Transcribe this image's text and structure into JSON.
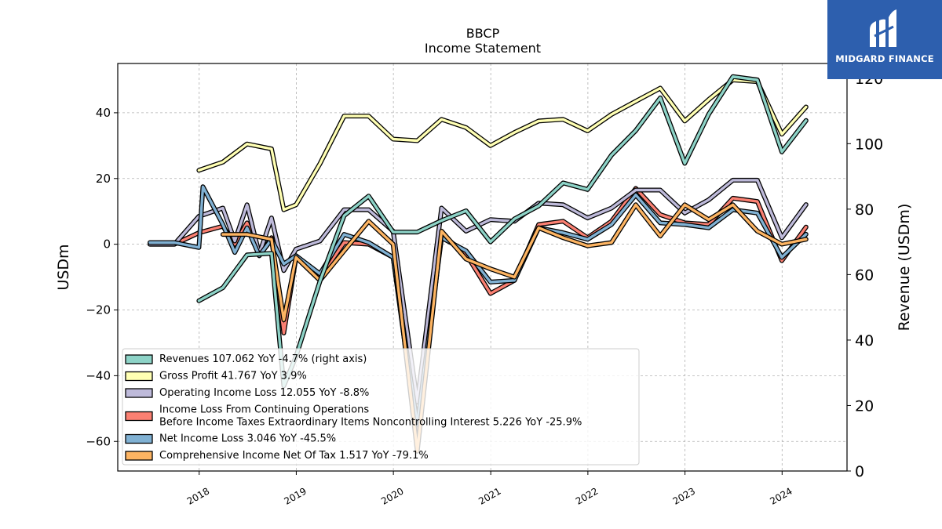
{
  "brand": {
    "name": "MIDGARD FINANCE",
    "bg_color": "#2d5fae"
  },
  "chart_data": {
    "type": "line",
    "title": "BBCP",
    "subtitle": "Income Statement",
    "ylabel_left": "USDm",
    "ylabel_right": "Revenue (USDm)",
    "ylim_left": [
      -69,
      55
    ],
    "ylim_right": [
      0,
      124.5
    ],
    "left_ticks": [
      40,
      20,
      0,
      -20,
      -40,
      -60
    ],
    "right_ticks": [
      120,
      100,
      80,
      60,
      40,
      20,
      0
    ],
    "x_ticks": [
      "2018",
      "2019",
      "2020",
      "2021",
      "2022",
      "2023",
      "2024"
    ],
    "x_tick_dates": [
      "2018-01-01",
      "2019-01-01",
      "2020-01-01",
      "2021-01-01",
      "2022-01-01",
      "2023-01-01",
      "2024-01-01"
    ],
    "grid": true,
    "legend_position": "lower-left",
    "series": [
      {
        "name": "Revenues",
        "legend": "Revenues  107.062 YoY -4.7% (right axis)",
        "color": "#8dd3c7",
        "axis": "right",
        "points": [
          [
            "2017-12-31",
            52
          ],
          [
            "2018-03-31",
            56
          ],
          [
            "2018-06-30",
            66
          ],
          [
            "2018-09-30",
            66.5
          ],
          [
            "2018-11-15",
            26
          ],
          [
            "2018-12-31",
            35
          ],
          [
            "2019-03-31",
            58
          ],
          [
            "2019-06-30",
            78
          ],
          [
            "2019-09-30",
            84
          ],
          [
            "2019-12-31",
            73
          ],
          [
            "2020-03-31",
            73
          ],
          [
            "2020-06-30",
            76.5
          ],
          [
            "2020-09-30",
            79.5
          ],
          [
            "2020-12-31",
            70
          ],
          [
            "2021-03-31",
            77
          ],
          [
            "2021-06-30",
            81
          ],
          [
            "2021-09-30",
            88
          ],
          [
            "2021-12-31",
            86
          ],
          [
            "2022-03-31",
            96.5
          ],
          [
            "2022-06-30",
            104
          ],
          [
            "2022-09-30",
            114
          ],
          [
            "2022-12-31",
            94
          ],
          [
            "2023-03-31",
            109
          ],
          [
            "2023-06-30",
            120.5
          ],
          [
            "2023-09-30",
            119.5
          ],
          [
            "2023-12-31",
            97.5
          ],
          [
            "2024-03-31",
            107.062
          ]
        ]
      },
      {
        "name": "Gross Profit",
        "legend": "Gross Profit  41.767 YoY 3.9%",
        "color": "#ffffb3",
        "axis": "left",
        "points": [
          [
            "2017-12-31",
            22.5
          ],
          [
            "2018-03-31",
            25
          ],
          [
            "2018-06-30",
            30.5
          ],
          [
            "2018-09-30",
            29
          ],
          [
            "2018-11-15",
            10.5
          ],
          [
            "2018-12-31",
            12
          ],
          [
            "2019-03-31",
            24.5
          ],
          [
            "2019-06-30",
            39
          ],
          [
            "2019-09-30",
            39
          ],
          [
            "2019-12-31",
            32
          ],
          [
            "2020-03-31",
            31.5
          ],
          [
            "2020-06-30",
            38
          ],
          [
            "2020-09-30",
            35.5
          ],
          [
            "2020-12-31",
            30
          ],
          [
            "2021-03-31",
            34
          ],
          [
            "2021-06-30",
            37.5
          ],
          [
            "2021-09-30",
            38
          ],
          [
            "2021-12-31",
            34.5
          ],
          [
            "2022-03-31",
            39.5
          ],
          [
            "2022-06-30",
            43.5
          ],
          [
            "2022-09-30",
            47.5
          ],
          [
            "2022-12-31",
            37.5
          ],
          [
            "2023-03-31",
            44
          ],
          [
            "2023-06-30",
            50
          ],
          [
            "2023-09-30",
            49.5
          ],
          [
            "2023-12-31",
            33.5
          ],
          [
            "2024-03-31",
            41.767
          ]
        ]
      },
      {
        "name": "Operating Income Loss",
        "legend": "Operating Income Loss  12.055 YoY -8.8%",
        "color": "#bebada",
        "axis": "left",
        "points": [
          [
            "2017-06-30",
            0
          ],
          [
            "2017-09-30",
            0
          ],
          [
            "2017-12-31",
            8.5
          ],
          [
            "2018-03-31",
            11
          ],
          [
            "2018-05-15",
            1
          ],
          [
            "2018-06-30",
            12
          ],
          [
            "2018-08-15",
            -3
          ],
          [
            "2018-09-30",
            8
          ],
          [
            "2018-11-15",
            -8
          ],
          [
            "2018-12-31",
            -1.5
          ],
          [
            "2019-03-31",
            1
          ],
          [
            "2019-06-30",
            10.5
          ],
          [
            "2019-09-30",
            10.5
          ],
          [
            "2019-12-31",
            4
          ],
          [
            "2020-03-31",
            -48
          ],
          [
            "2020-06-30",
            11
          ],
          [
            "2020-09-30",
            4
          ],
          [
            "2020-12-31",
            7.5
          ],
          [
            "2021-03-31",
            7
          ],
          [
            "2021-06-30",
            12.5
          ],
          [
            "2021-09-30",
            12
          ],
          [
            "2021-12-31",
            8
          ],
          [
            "2022-03-31",
            11
          ],
          [
            "2022-06-30",
            16.5
          ],
          [
            "2022-09-30",
            16.5
          ],
          [
            "2022-12-31",
            9.5
          ],
          [
            "2023-03-31",
            13.5
          ],
          [
            "2023-06-30",
            19.5
          ],
          [
            "2023-09-30",
            19.5
          ],
          [
            "2023-12-31",
            2
          ],
          [
            "2024-03-31",
            12.055
          ]
        ]
      },
      {
        "name": "Income Loss From Continuing Operations Before Income Taxes Extraordinary Items Noncontrolling Interest",
        "legend_lines": [
          "Income Loss From Continuing Operations",
          "Before Income Taxes Extraordinary Items Noncontrolling Interest  5.226 YoY -25.9%"
        ],
        "color": "#fb8072",
        "axis": "left",
        "points": [
          [
            "2017-06-30",
            0
          ],
          [
            "2017-09-30",
            0
          ],
          [
            "2017-12-31",
            3.5
          ],
          [
            "2018-03-31",
            5.5
          ],
          [
            "2018-05-15",
            0
          ],
          [
            "2018-06-30",
            6.5
          ],
          [
            "2018-08-15",
            -3.5
          ],
          [
            "2018-09-30",
            2
          ],
          [
            "2018-11-15",
            -27
          ],
          [
            "2018-12-31",
            -4
          ],
          [
            "2019-03-31",
            -10
          ],
          [
            "2019-06-30",
            0.5
          ],
          [
            "2019-09-30",
            0
          ],
          [
            "2019-12-31",
            -4
          ],
          [
            "2020-03-31",
            -58
          ],
          [
            "2020-06-30",
            3
          ],
          [
            "2020-09-30",
            -3
          ],
          [
            "2020-12-31",
            -15
          ],
          [
            "2021-03-31",
            -11
          ],
          [
            "2021-06-30",
            6
          ],
          [
            "2021-09-30",
            7
          ],
          [
            "2021-12-31",
            2
          ],
          [
            "2022-03-31",
            7
          ],
          [
            "2022-06-30",
            17
          ],
          [
            "2022-09-30",
            9
          ],
          [
            "2022-12-31",
            6.5
          ],
          [
            "2023-03-31",
            6
          ],
          [
            "2023-06-30",
            14
          ],
          [
            "2023-09-30",
            13
          ],
          [
            "2023-12-31",
            -5
          ],
          [
            "2024-03-31",
            5.226
          ]
        ]
      },
      {
        "name": "Net Income Loss",
        "legend": "Net Income Loss  3.046 YoY -45.5%",
        "color": "#80b1d3",
        "axis": "left",
        "points": [
          [
            "2017-06-30",
            0.5
          ],
          [
            "2017-09-30",
            0.5
          ],
          [
            "2017-12-31",
            -1
          ],
          [
            "2018-01-15",
            17.5
          ],
          [
            "2018-03-31",
            6
          ],
          [
            "2018-05-15",
            -2.5
          ],
          [
            "2018-06-30",
            5
          ],
          [
            "2018-08-15",
            -3.5
          ],
          [
            "2018-09-30",
            1.5
          ],
          [
            "2018-11-15",
            -6
          ],
          [
            "2018-12-31",
            -3.5
          ],
          [
            "2019-03-31",
            -9
          ],
          [
            "2019-06-30",
            3
          ],
          [
            "2019-09-30",
            0.5
          ],
          [
            "2019-12-31",
            -4
          ],
          [
            "2020-03-31",
            -55
          ],
          [
            "2020-06-30",
            2
          ],
          [
            "2020-09-30",
            -2
          ],
          [
            "2020-12-31",
            -11.5
          ],
          [
            "2021-03-31",
            -11
          ],
          [
            "2021-06-30",
            5
          ],
          [
            "2021-09-30",
            3.5
          ],
          [
            "2021-12-31",
            1.5
          ],
          [
            "2022-03-31",
            6
          ],
          [
            "2022-06-30",
            15
          ],
          [
            "2022-09-30",
            6.5
          ],
          [
            "2022-12-31",
            6
          ],
          [
            "2023-03-31",
            5
          ],
          [
            "2023-06-30",
            10.5
          ],
          [
            "2023-09-30",
            9.5
          ],
          [
            "2023-12-31",
            -4
          ],
          [
            "2024-03-31",
            3.046
          ]
        ]
      },
      {
        "name": "Comprehensive Income Net Of Tax",
        "legend": "Comprehensive Income Net Of Tax  1.517 YoY -79.1%",
        "color": "#fdb462",
        "axis": "left",
        "points": [
          [
            "2018-03-31",
            3
          ],
          [
            "2018-06-30",
            3
          ],
          [
            "2018-09-30",
            1.5
          ],
          [
            "2018-11-15",
            -23
          ],
          [
            "2018-12-31",
            -4
          ],
          [
            "2019-03-31",
            -11
          ],
          [
            "2019-06-30",
            -2
          ],
          [
            "2019-09-30",
            7
          ],
          [
            "2019-12-31",
            0
          ],
          [
            "2020-03-31",
            -63
          ],
          [
            "2020-06-30",
            4
          ],
          [
            "2020-09-30",
            -4.5
          ],
          [
            "2020-12-31",
            -7.5
          ],
          [
            "2021-03-31",
            -10
          ],
          [
            "2021-06-30",
            5
          ],
          [
            "2021-09-30",
            2
          ],
          [
            "2021-12-31",
            -0.5
          ],
          [
            "2022-03-31",
            0.5
          ],
          [
            "2022-06-30",
            12
          ],
          [
            "2022-09-30",
            2.5
          ],
          [
            "2022-12-31",
            12
          ],
          [
            "2023-03-31",
            7.5
          ],
          [
            "2023-06-30",
            12
          ],
          [
            "2023-09-30",
            4
          ],
          [
            "2023-12-31",
            0
          ],
          [
            "2024-03-31",
            1.517
          ]
        ]
      }
    ]
  }
}
